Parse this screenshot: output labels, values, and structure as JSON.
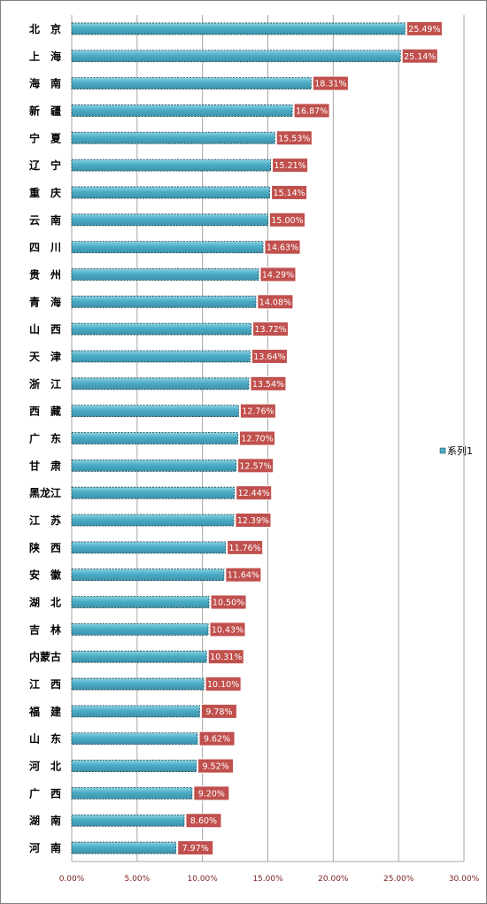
{
  "chart_data": {
    "type": "bar",
    "orientation": "horizontal",
    "categories": [
      "北　京",
      "上　海",
      "海　南",
      "新　疆",
      "宁　夏",
      "辽　宁",
      "重　庆",
      "云　南",
      "四　川",
      "贵　州",
      "青　海",
      "山　西",
      "天　津",
      "浙　江",
      "西　藏",
      "广　东",
      "甘　肃",
      "黑龙江",
      "江　苏",
      "陕　西",
      "安　徽",
      "湖　北",
      "吉　林",
      "内蒙古",
      "江　西",
      "福　建",
      "山　东",
      "河　北",
      "广　西",
      "湖　南",
      "河　南"
    ],
    "series": [
      {
        "name": "系列1",
        "values": [
          25.49,
          25.14,
          18.31,
          16.87,
          15.53,
          15.21,
          15.14,
          15.0,
          14.63,
          14.29,
          14.08,
          13.72,
          13.64,
          13.54,
          12.76,
          12.7,
          12.57,
          12.44,
          12.39,
          11.76,
          11.64,
          10.5,
          10.43,
          10.31,
          10.1,
          9.78,
          9.62,
          9.52,
          9.2,
          8.6,
          7.97
        ],
        "labels": [
          "25.49%",
          "25.14%",
          "18.31%",
          "16.87%",
          "15.53%",
          "15.21%",
          "15.14%",
          "15.00%",
          "14.63%",
          "14.29%",
          "14.08%",
          "13.72%",
          "13.64%",
          "13.54%",
          "12.76%",
          "12.70%",
          "12.57%",
          "12.44%",
          "12.39%",
          "11.76%",
          "11.64%",
          "10.50%",
          "10.43%",
          "10.31%",
          "10.10%",
          "9.78%",
          "9.62%",
          "9.52%",
          "9.20%",
          "8.60%",
          "7.97%"
        ]
      }
    ],
    "x_ticks": [
      0,
      5,
      10,
      15,
      20,
      25,
      30
    ],
    "x_tick_labels": [
      "0.00%",
      "5.00%",
      "10.00%",
      "15.00%",
      "20.00%",
      "25.00%",
      "30.00%"
    ],
    "xlim": [
      0,
      30
    ],
    "grid": true,
    "legend_position": "right",
    "colors": {
      "bar_fill": "#4bacc6",
      "bar_highlight": "#7ecbdc",
      "label_fill": "#c0504d",
      "label_border": "#ffffff",
      "gridline": "#a6a6a6",
      "frame": "#7f7f7f",
      "tick_text": "#7a1f1f"
    }
  }
}
